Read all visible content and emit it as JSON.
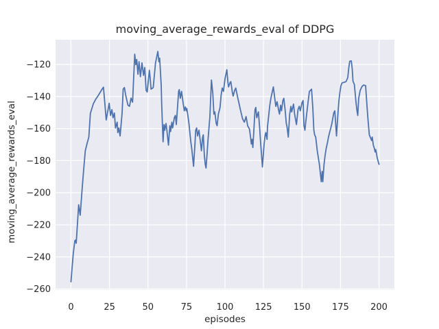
{
  "figure": {
    "title": "moving_average_rewards_eval of DDPG",
    "xlabel": "episodes",
    "ylabel": "moving_average_rewards_eval"
  },
  "colors": {
    "figure_bg": "#ffffff",
    "axes_bg": "#eaeaf2",
    "grid": "#ffffff",
    "line": "#4c72b0",
    "text": "#262626"
  },
  "chart_data": {
    "type": "line",
    "title": "moving_average_rewards_eval of DDPG",
    "xlabel": "episodes",
    "ylabel": "moving_average_rewards_eval",
    "grid": true,
    "legend_position": "none",
    "xlim": [
      -10,
      210
    ],
    "ylim": [
      -260.6,
      -104.6
    ],
    "x_ticks": [
      0,
      25,
      50,
      75,
      100,
      125,
      150,
      175,
      200
    ],
    "x_tick_labels": [
      "0",
      "25",
      "50",
      "75",
      "100",
      "125",
      "150",
      "175",
      "200"
    ],
    "y_ticks": [
      -120,
      -140,
      -160,
      -180,
      -200,
      -220,
      -240,
      -260
    ],
    "y_tick_labels": [
      "−120",
      "−140",
      "−160",
      "−180",
      "−200",
      "−220",
      "−240",
      "−260"
    ],
    "series": [
      {
        "name": "moving_average_rewards_eval",
        "x": [
          0,
          0.7,
          1.5,
          2.5,
          3,
          3.4,
          5,
          6,
          7.3,
          8.3,
          9.3,
          10.4,
          11.6,
          12.6,
          14.5,
          16,
          17.5,
          18.9,
          20.4,
          21.1,
          22.9,
          24.8,
          25.7,
          26.6,
          27.3,
          28.2,
          28.9,
          30,
          30.4,
          31.1,
          31.9,
          33.2,
          33.9,
          34.7,
          35.5,
          37,
          38,
          39,
          40,
          41.4,
          42.1,
          42.7,
          43.5,
          44.2,
          45.1,
          46.1,
          47.1,
          47.9,
          48.8,
          49.5,
          50.9,
          51.4,
          52,
          53.4,
          54.9,
          56.4,
          57.1,
          57.6,
          58.6,
          58.9,
          59.3,
          59.8,
          60.4,
          60.9,
          61.7,
          62.2,
          63.3,
          64.2,
          64.7,
          65.5,
          66,
          67.1,
          67.8,
          68.4,
          69.9,
          70.3,
          71,
          71.8,
          72.8,
          73.6,
          74.3,
          74.9,
          75.2,
          75.9,
          76.6,
          77.2,
          77.8,
          78.4,
          79.6,
          80.5,
          81,
          81.6,
          82.2,
          83.1,
          84.3,
          84.7,
          85.5,
          85.9,
          86.6,
          87.2,
          87.7,
          88.4,
          89,
          89.6,
          90.2,
          91.2,
          92.1,
          92.8,
          93.4,
          94.3,
          94.9,
          95.7,
          96.8,
          97.5,
          98.2,
          99,
          100,
          101.2,
          101.9,
          102.3,
          103.4,
          103.8,
          104.8,
          105.3,
          106.3,
          107,
          108.2,
          109.2,
          110,
          110.7,
          111.4,
          112.6,
          113.7,
          114.7,
          115.9,
          116.6,
          117.1,
          117.6,
          118.1,
          119.5,
          120,
          120.6,
          121.7,
          122.5,
          123.2,
          124.3,
          125.4,
          126.1,
          126.5,
          127.3,
          127.6,
          129.1,
          129.8,
          131.4,
          132.5,
          133,
          133.8,
          134.9,
          135.4,
          136.1,
          136.7,
          137.6,
          138.2,
          139.1,
          139.8,
          140.3,
          141.1,
          142,
          142.8,
          143.3,
          144.5,
          145.2,
          146.4,
          147.4,
          148.2,
          148.9,
          150,
          150.7,
          151.3,
          151.9,
          152.5,
          154,
          154.8,
          155.5,
          156.2,
          157,
          157.7,
          158.2,
          158.9,
          159.9,
          160.6,
          161.3,
          162.1,
          162.5,
          163.1,
          163.5,
          164.3,
          165,
          165.7,
          166.5,
          167.2,
          167.9,
          168.7,
          169.4,
          170.6,
          171.3,
          172.4,
          173.4,
          173.9,
          174.6,
          175.3,
          176,
          177.5,
          178.6,
          179.7,
          180.4,
          181,
          182,
          182.6,
          183.1,
          184,
          185,
          185.6,
          186.2,
          186.8,
          187.8,
          189,
          190,
          191.3,
          192.2,
          192.9,
          193.7,
          194.3,
          195.2,
          195.6,
          196.3,
          197,
          197.5,
          197.9,
          198.8,
          199.6,
          200
        ],
        "y": [
          -255.5,
          -247,
          -238,
          -230,
          -229.5,
          -231.5,
          -207.5,
          -214,
          -197,
          -185,
          -173.8,
          -169.5,
          -165.3,
          -150.5,
          -144.6,
          -141.8,
          -139.7,
          -137.5,
          -135.1,
          -134.2,
          -154.6,
          -144.2,
          -151.8,
          -148.2,
          -153.2,
          -150.3,
          -159.6,
          -156,
          -162.5,
          -159.6,
          -164.6,
          -150.3,
          -135.4,
          -134.4,
          -139,
          -145.4,
          -146.1,
          -141,
          -143.5,
          -113.6,
          -120.1,
          -116.9,
          -126.1,
          -118.3,
          -127.6,
          -119,
          -126.8,
          -121.9,
          -136.1,
          -137.2,
          -123.6,
          -128.3,
          -135.4,
          -134.4,
          -119,
          -111.9,
          -118.3,
          -116.1,
          -133.2,
          -144.7,
          -155.3,
          -168.2,
          -157.5,
          -161,
          -156.8,
          -160.3,
          -170.3,
          -158.2,
          -161.8,
          -156,
          -159.6,
          -153.2,
          -151.8,
          -157.5,
          -136.8,
          -135.7,
          -141.1,
          -136.8,
          -143.9,
          -148.9,
          -146.5,
          -148.9,
          -147.5,
          -151.8,
          -156.8,
          -162.5,
          -168.2,
          -172.4,
          -183.5,
          -169.6,
          -161,
          -159.6,
          -164.6,
          -161,
          -170.3,
          -173.8,
          -165.3,
          -163.9,
          -176.7,
          -182.4,
          -184.6,
          -175.3,
          -166.7,
          -159.6,
          -152.5,
          -129.7,
          -138.2,
          -151,
          -149.6,
          -156.8,
          -158.2,
          -151,
          -146.8,
          -139,
          -134.7,
          -136.8,
          -129,
          -123.3,
          -131.1,
          -134,
          -131.1,
          -130.7,
          -137.5,
          -139.7,
          -136.1,
          -134.7,
          -140.4,
          -144.7,
          -148.2,
          -151,
          -153.9,
          -156,
          -152.5,
          -158.2,
          -160.3,
          -165.3,
          -169.6,
          -166.7,
          -171.8,
          -148.2,
          -146.8,
          -153.2,
          -149.6,
          -159.6,
          -169.6,
          -183.9,
          -169.6,
          -163.9,
          -162.5,
          -166.7,
          -158.9,
          -145.4,
          -141.1,
          -134,
          -142.5,
          -146.1,
          -143.2,
          -148.9,
          -151,
          -145.4,
          -148.9,
          -142.5,
          -141.1,
          -148.9,
          -156.8,
          -158.9,
          -165.3,
          -151,
          -146.1,
          -149.6,
          -144.7,
          -151,
          -157.5,
          -148.2,
          -146.1,
          -148.9,
          -143.9,
          -142.5,
          -158.2,
          -161,
          -155.3,
          -143,
          -136.8,
          -136.1,
          -135.4,
          -146.8,
          -161,
          -163.9,
          -165.3,
          -173.8,
          -178.1,
          -182.4,
          -189.5,
          -193.1,
          -186.7,
          -193.1,
          -182.4,
          -176.7,
          -172.4,
          -168.9,
          -165.3,
          -162.5,
          -159.6,
          -156.8,
          -150.3,
          -148.9,
          -164.6,
          -149.6,
          -143.2,
          -137.5,
          -133.2,
          -131.5,
          -131.1,
          -130.7,
          -128.3,
          -121.9,
          -118,
          -117.8,
          -122.6,
          -130.4,
          -132.5,
          -143,
          -148.2,
          -151.8,
          -141.1,
          -136.1,
          -133.7,
          -132.8,
          -133.2,
          -146,
          -155,
          -163.9,
          -165.3,
          -167.4,
          -165.3,
          -170.3,
          -172.4,
          -174.6,
          -173.1,
          -178.1,
          -181,
          -182.3
        ]
      }
    ]
  }
}
